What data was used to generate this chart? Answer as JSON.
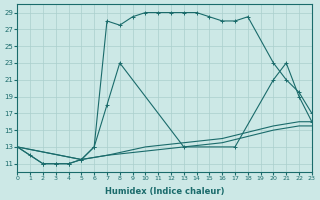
{
  "xlabel": "Humidex (Indice chaleur)",
  "bg_color": "#cce8e6",
  "grid_color": "#aacfcd",
  "line_color": "#1a6b6b",
  "xlim": [
    0,
    23
  ],
  "ylim": [
    10,
    30
  ],
  "yticks": [
    11,
    13,
    15,
    17,
    19,
    21,
    23,
    25,
    27,
    29
  ],
  "xticks": [
    0,
    1,
    2,
    3,
    4,
    5,
    6,
    7,
    8,
    9,
    10,
    11,
    12,
    13,
    14,
    15,
    16,
    17,
    18,
    19,
    20,
    21,
    22,
    23
  ],
  "series": [
    {
      "x": [
        0,
        1,
        2,
        3,
        4,
        5,
        6,
        7,
        8,
        9,
        10,
        11,
        12,
        13,
        14,
        15,
        16,
        17,
        18,
        20,
        21,
        22,
        23
      ],
      "y": [
        13,
        12,
        11,
        11,
        11,
        11.5,
        13,
        28,
        27.5,
        28.5,
        29,
        29,
        29,
        29,
        29,
        28.5,
        28,
        28,
        28.5,
        23,
        21,
        19.5,
        17
      ]
    },
    {
      "x": [
        0,
        2,
        3,
        4,
        5,
        6,
        7,
        8,
        13,
        17,
        20,
        21,
        22,
        23
      ],
      "y": [
        13,
        11,
        11,
        11,
        11.5,
        13,
        18,
        23,
        13,
        13,
        21,
        23,
        19,
        16
      ]
    },
    {
      "x": [
        0,
        5,
        7,
        10,
        13,
        16,
        20,
        22,
        23
      ],
      "y": [
        13,
        11.5,
        12,
        13,
        13.5,
        14,
        15.5,
        16,
        16
      ]
    },
    {
      "x": [
        0,
        5,
        7,
        10,
        13,
        16,
        20,
        22,
        23
      ],
      "y": [
        13,
        11.5,
        12,
        12.5,
        13,
        13.5,
        15,
        15.5,
        15.5
      ]
    }
  ]
}
